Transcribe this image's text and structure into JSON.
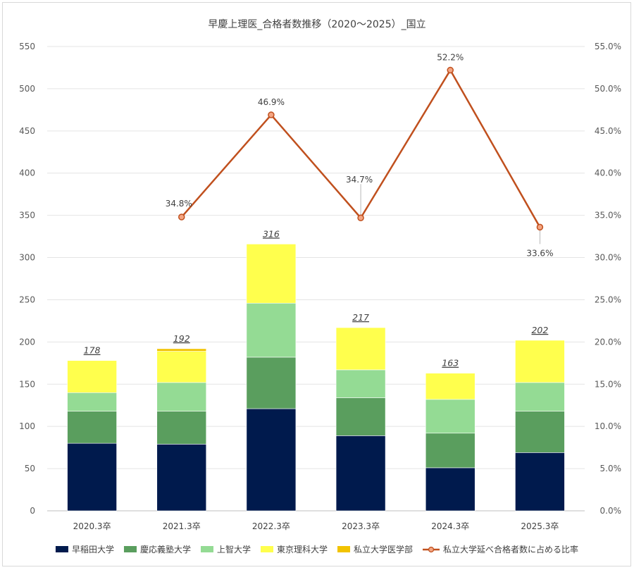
{
  "chart_data": {
    "type": "bar",
    "stacked": true,
    "title": "早慶上理医_合格者数推移（2020～2025）_国立",
    "categories": [
      "2020.3卒",
      "2021.3卒",
      "2022.3卒",
      "2023.3卒",
      "2024.3卒",
      "2025.3卒"
    ],
    "series": [
      {
        "name": "早稲田大学",
        "color": "#001a4d",
        "values": [
          80,
          79,
          121,
          89,
          51,
          69
        ]
      },
      {
        "name": "慶応義塾大学",
        "color": "#5a9e5e",
        "values": [
          38,
          39,
          61,
          45,
          41,
          49
        ]
      },
      {
        "name": "上智大学",
        "color": "#94db94",
        "values": [
          22,
          34,
          64,
          33,
          40,
          34
        ]
      },
      {
        "name": "東京理科大学",
        "color": "#ffff4d",
        "values": [
          38,
          37,
          70,
          50,
          31,
          50
        ]
      },
      {
        "name": "私立大学医学部",
        "color": "#f2c300",
        "values": [
          0,
          3,
          0,
          0,
          0,
          0
        ]
      }
    ],
    "totals": [
      "178",
      "192",
      "316",
      "217",
      "163",
      "202"
    ],
    "line": {
      "name": "私立大学延べ合格者数に占める比率",
      "color": "#c0501e",
      "values": [
        null,
        34.8,
        46.9,
        34.7,
        52.2,
        33.6
      ],
      "labels": [
        "",
        "34.8%",
        "46.9%",
        "34.7%",
        "52.2%",
        "33.6%"
      ]
    },
    "y_left": {
      "min": 0,
      "max": 550,
      "ticks": [
        "0",
        "50",
        "100",
        "150",
        "200",
        "250",
        "300",
        "350",
        "400",
        "450",
        "500",
        "550"
      ]
    },
    "y_right": {
      "min": 0,
      "max": 55,
      "ticks": [
        "0.0%",
        "5.0%",
        "10.0%",
        "15.0%",
        "20.0%",
        "25.0%",
        "30.0%",
        "35.0%",
        "40.0%",
        "45.0%",
        "50.0%",
        "55.0%"
      ]
    },
    "grid": true,
    "legend_position": "bottom"
  }
}
